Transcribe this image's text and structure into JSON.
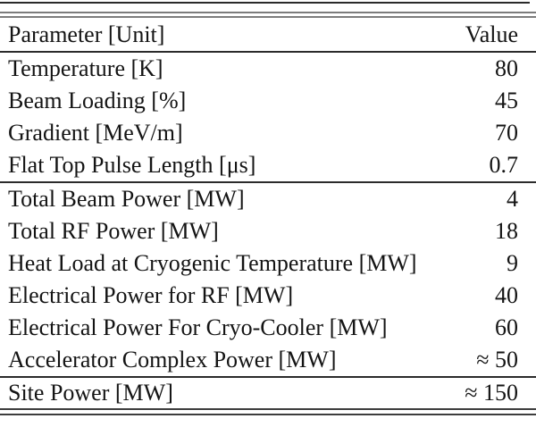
{
  "table": {
    "columns": [
      "Parameter [Unit]",
      "Value"
    ],
    "groups": [
      {
        "name": "machine-parameters",
        "rows": [
          {
            "parameter": "Temperature [K]",
            "value": "80"
          },
          {
            "parameter": "Beam Loading [%]",
            "value": "45"
          },
          {
            "parameter": "Gradient [MeV/m]",
            "value": "70"
          },
          {
            "parameter": "Flat Top Pulse Length [μs]",
            "value": "0.7"
          }
        ]
      },
      {
        "name": "power-breakdown",
        "rows": [
          {
            "parameter": "Total Beam Power [MW]",
            "value": "4"
          },
          {
            "parameter": "Total RF Power [MW]",
            "value": "18"
          },
          {
            "parameter": "Heat Load at Cryogenic Temperature [MW]",
            "value": "9"
          },
          {
            "parameter": "Electrical Power for RF [MW]",
            "value": "40"
          },
          {
            "parameter": "Electrical Power For Cryo-Cooler [MW]",
            "value": "60"
          },
          {
            "parameter": "Accelerator Complex Power [MW]",
            "value": "≈ 50"
          }
        ]
      },
      {
        "name": "total",
        "rows": [
          {
            "parameter": "Site Power [MW]",
            "value": "≈ 150"
          }
        ]
      }
    ]
  },
  "chart_data": {
    "type": "table",
    "columns": [
      "Parameter [Unit]",
      "Value"
    ],
    "rows": [
      [
        "Temperature [K]",
        "80"
      ],
      [
        "Beam Loading [%]",
        "45"
      ],
      [
        "Gradient [MeV/m]",
        "70"
      ],
      [
        "Flat Top Pulse Length [μs]",
        "0.7"
      ],
      [
        "Total Beam Power [MW]",
        "4"
      ],
      [
        "Total RF Power [MW]",
        "18"
      ],
      [
        "Heat Load at Cryogenic Temperature [MW]",
        "9"
      ],
      [
        "Electrical Power for RF [MW]",
        "40"
      ],
      [
        "Electrical Power For Cryo-Cooler [MW]",
        "60"
      ],
      [
        "Accelerator Complex Power [MW]",
        "≈ 50"
      ],
      [
        "Site Power [MW]",
        "≈ 150"
      ]
    ]
  },
  "colors": {
    "background": "#ffffff",
    "text": "#141414",
    "rule": "#2b2b2b",
    "double_rule_top": "#7c7c7c",
    "double_rule_bottom": "#3d3d3d",
    "top_edge_rule": "#2a2a2a"
  }
}
